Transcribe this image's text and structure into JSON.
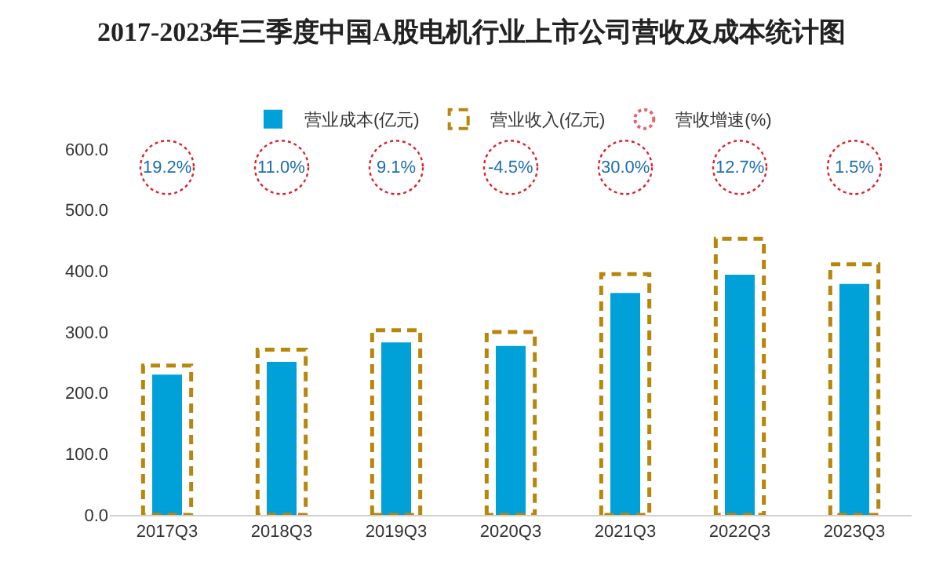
{
  "chart_data": {
    "type": "bar",
    "title": "2017-2023年三季度中国A股电机行业上市公司营收及成本统计图",
    "categories": [
      "2017Q3",
      "2018Q3",
      "2019Q3",
      "2020Q3",
      "2021Q3",
      "2022Q3",
      "2023Q3"
    ],
    "series": [
      {
        "name": "营业成本(亿元)",
        "color": "#00a0d8",
        "values": [
          230,
          251,
          283,
          277,
          364,
          394,
          379
        ]
      },
      {
        "name": "营业收入(亿元)",
        "color": "#b8860b",
        "line_style": "dashed",
        "values": [
          245,
          271,
          303,
          300,
          395,
          453,
          411
        ]
      },
      {
        "type": "scatter",
        "name": "营收增速(%)",
        "color": "#e0202a",
        "marker": "circle",
        "line_style": "dotted",
        "values": [
          null,
          null,
          null,
          null,
          null,
          null,
          null
        ]
      }
    ],
    "annotations": [
      {
        "text": "19.2%",
        "x": "2017Q3",
        "y": 570
      },
      {
        "text": "11.0%",
        "x": "2018Q3",
        "y": 570
      },
      {
        "text": "9.1%",
        "x": "2019Q3",
        "y": 570
      },
      {
        "text": "-4.5%",
        "x": "2020Q3",
        "y": 570
      },
      {
        "text": "30.0%",
        "x": "2021Q3",
        "y": 570
      },
      {
        "text": "12.7%",
        "x": "2022Q3",
        "y": 570
      },
      {
        "text": "1.5%",
        "x": "2023Q3",
        "y": 570
      }
    ],
    "ylim": [
      0,
      600
    ],
    "yticks": [
      {
        "value": 0,
        "label": "0.0"
      },
      {
        "value": 100,
        "label": "100.0"
      },
      {
        "value": 200,
        "label": "200.0"
      },
      {
        "value": 300,
        "label": "300.0"
      },
      {
        "value": 400,
        "label": "400.0"
      },
      {
        "value": 500,
        "label": "500.0"
      },
      {
        "value": 600,
        "label": "600.0"
      }
    ],
    "grid": false,
    "legend": "top"
  }
}
